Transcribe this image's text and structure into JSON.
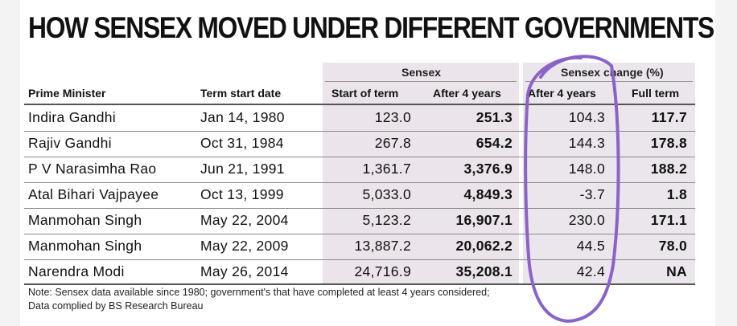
{
  "title": "HOW SENSEX MOVED UNDER DIFFERENT GOVERNMENTS",
  "groups": {
    "sensex": "Sensex",
    "change_part1": "Sensex",
    "change_part2": "change (%)"
  },
  "headers": {
    "pm": "Prime Minister",
    "term_start": "Term start date",
    "start_of_term": "Start of term",
    "after4": "After 4 years",
    "chg_after4": "After 4 years",
    "full_term": "Full term"
  },
  "rows": [
    {
      "pm": "Indira Gandhi",
      "date": "Jan 14, 1980",
      "start": "123.0",
      "after4": "251.3",
      "chg4": "104.3",
      "full": "117.7"
    },
    {
      "pm": "Rajiv Gandhi",
      "date": "Oct 31, 1984",
      "start": "267.8",
      "after4": "654.2",
      "chg4": "144.3",
      "full": "178.8"
    },
    {
      "pm": "P V Narasimha Rao",
      "date": "Jun 21, 1991",
      "start": "1,361.7",
      "after4": "3,376.9",
      "chg4": "148.0",
      "full": "188.2"
    },
    {
      "pm": "Atal Bihari Vajpayee",
      "date": "Oct 13, 1999",
      "start": "5,033.0",
      "after4": "4,849.3",
      "chg4": "-3.7",
      "full": "1.8"
    },
    {
      "pm": "Manmohan Singh",
      "date": "May 22, 2004",
      "start": "5,123.2",
      "after4": "16,907.1",
      "chg4": "230.0",
      "full": "171.1"
    },
    {
      "pm": "Manmohan Singh",
      "date": "May 22, 2009",
      "start": "13,887.2",
      "after4": "20,062.2",
      "chg4": "44.5",
      "full": "78.0"
    },
    {
      "pm": "Narendra Modi",
      "date": "May 26, 2014",
      "start": "24,716.9",
      "after4": "35,208.1",
      "chg4": "42.4",
      "full": "NA"
    }
  ],
  "note_line1": "Note: Sensex data available since 1980; government's that have completed at least 4 years considered;",
  "note_line2": "Data complied by BS Research Bureau",
  "highlight_color": "#8a63c9"
}
